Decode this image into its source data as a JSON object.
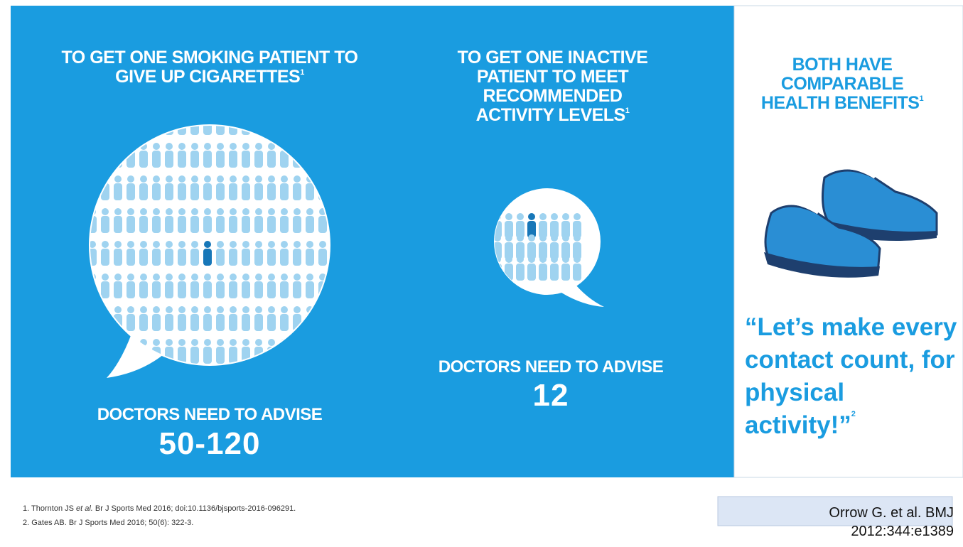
{
  "panels": [
    {
      "heading": "TO GET ONE SMOKING PATIENT TO GIVE UP CIGARETTES",
      "heading_note": "1",
      "caption": "DOCTORS NEED TO ADVISE",
      "number": "50-120"
    },
    {
      "heading": "TO GET ONE INACTIVE PATIENT TO MEET RECOMMENDED ACTIVITY LEVELS",
      "heading_note": "1",
      "caption": "DOCTORS NEED TO ADVISE",
      "number": "12"
    },
    {
      "heading": "BOTH HAVE COMPARABLE HEALTH BENEFITS",
      "heading_note": "1",
      "quote": "“Let’s make every contact count, for physical activity!”",
      "quote_note": "2"
    }
  ],
  "references": [
    {
      "before": "1. Thornton JS ",
      "italic": "et al.",
      "after": " Br J Sports Med 2016; doi:10.1136/bjsports-2016-096291."
    },
    {
      "before": "2. Gates AB. Br J Sports Med 2016; 50(6): 322-3."
    }
  ],
  "source": "Orrow  G. et al. BMJ 2012:344:e1389"
}
